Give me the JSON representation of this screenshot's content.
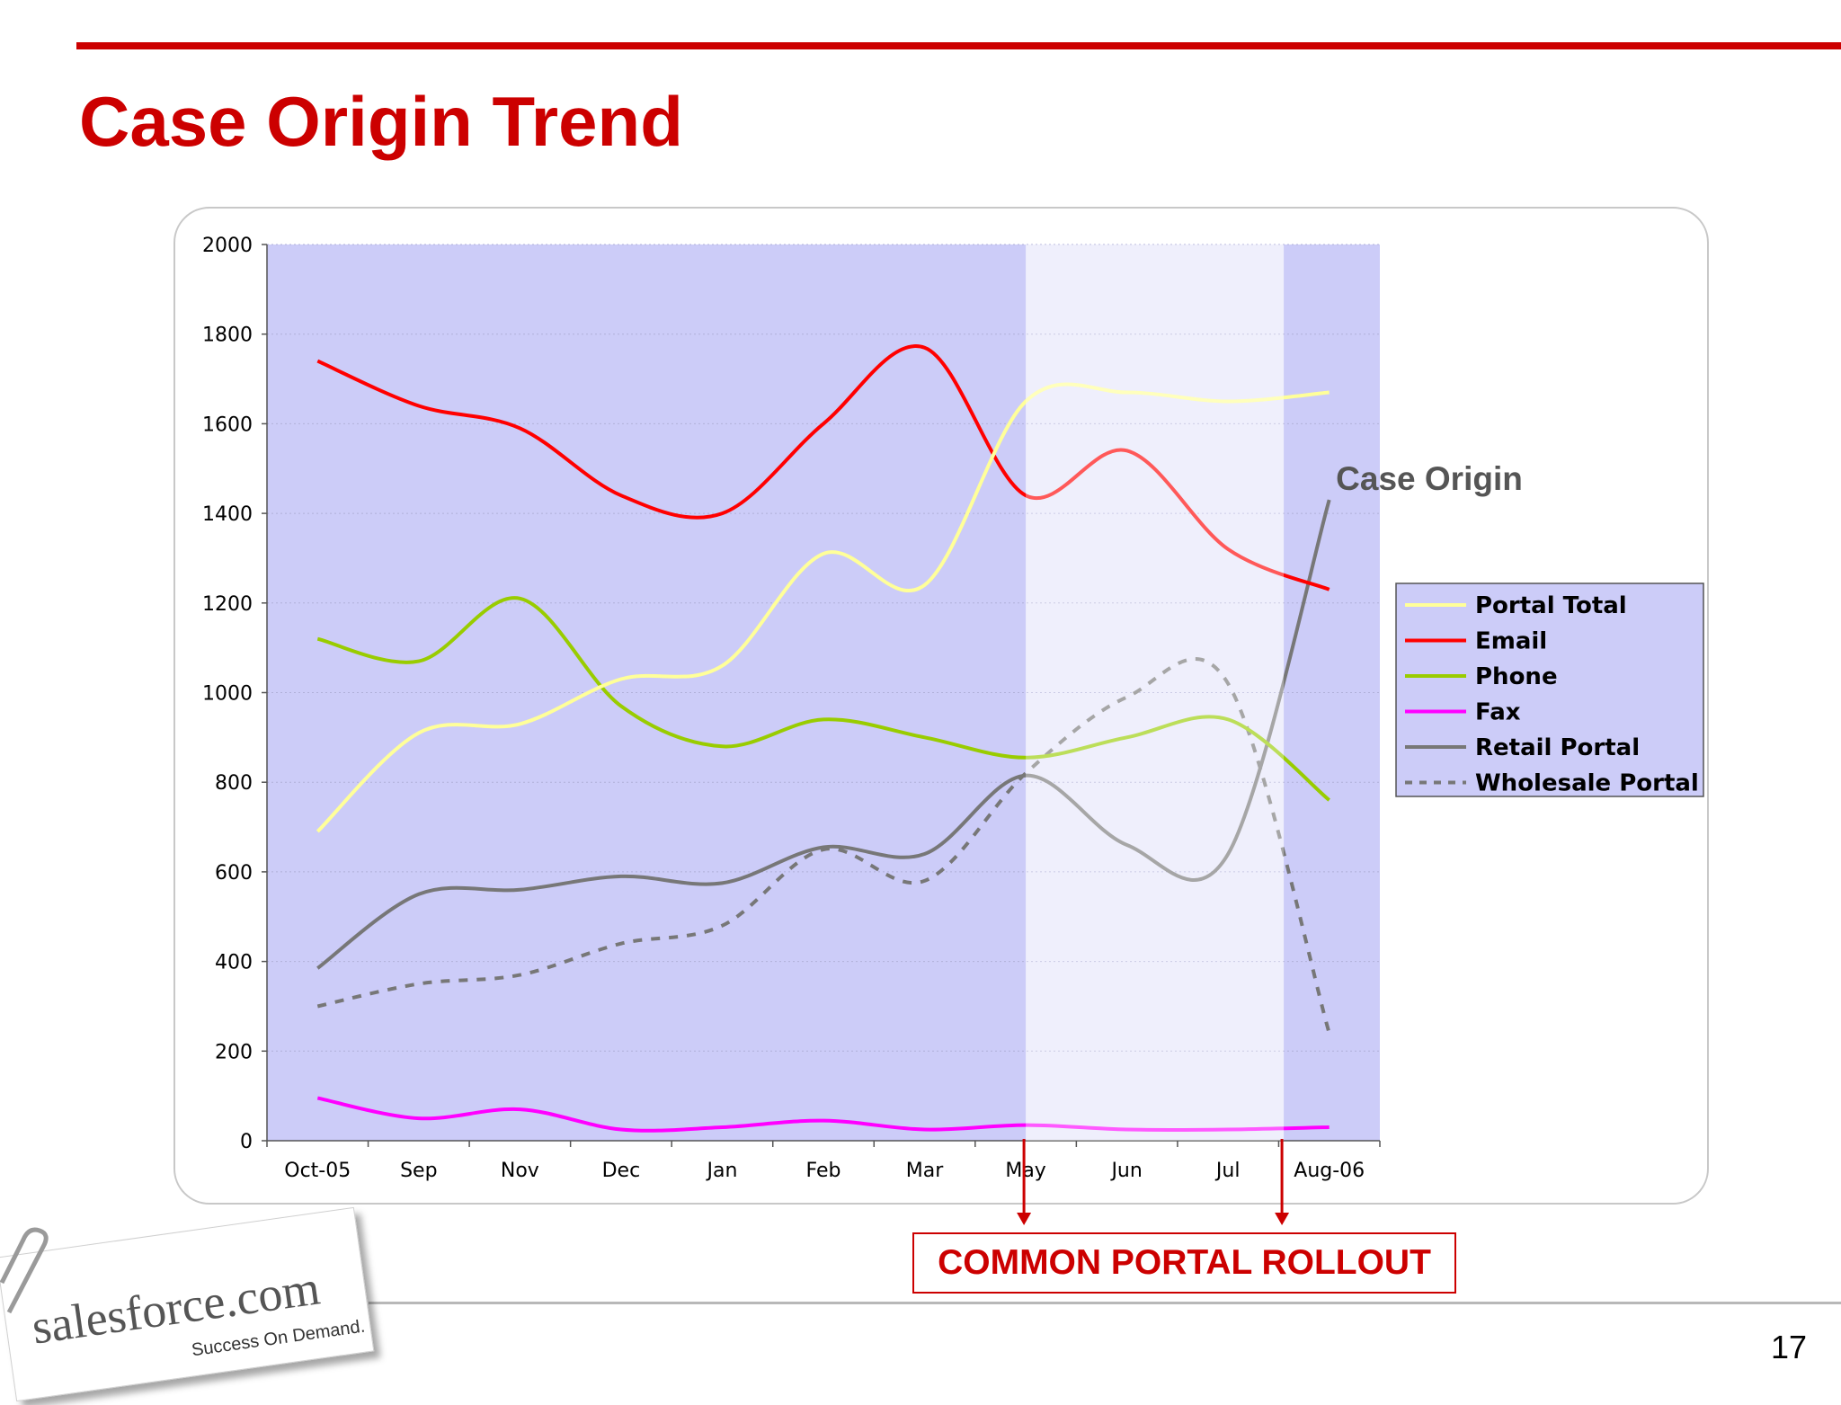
{
  "slide": {
    "title": "Case Origin Trend",
    "page_number": "17",
    "callout": "COMMON PORTAL ROLLOUT",
    "logo": {
      "wordmark": "salesforce.com",
      "tagline": "Success On Demand."
    }
  },
  "colors": {
    "accent": "#cc0000",
    "plot_bg": "#ccccf8",
    "highlight_band": "#e6e6fa",
    "Portal Total": "#ffff99",
    "Email": "#ff0000",
    "Phone": "#99cc00",
    "Fax": "#ff00ff",
    "Retail Portal": "#777777",
    "Wholesale Portal": "#777777"
  },
  "chart_data": {
    "type": "line",
    "categories": [
      "Oct-05",
      "Sep",
      "Nov",
      "Dec",
      "Jan",
      "Feb",
      "Mar",
      "May",
      "Jun",
      "Jul",
      "Aug-06"
    ],
    "ylim": [
      0,
      2000
    ],
    "yticks": [
      0,
      200,
      400,
      600,
      800,
      1000,
      1200,
      1400,
      1600,
      1800,
      2000
    ],
    "grid": true,
    "legend": {
      "title": "Case Origin",
      "position": "right"
    },
    "highlight_range": [
      "May",
      "Aug-06"
    ],
    "series": [
      {
        "name": "Portal Total",
        "style": "solid",
        "values": [
          690,
          910,
          930,
          1030,
          1060,
          1310,
          1240,
          1650,
          1670,
          1650,
          1670
        ]
      },
      {
        "name": "Email",
        "style": "solid",
        "values": [
          1740,
          1640,
          1590,
          1440,
          1400,
          1600,
          1770,
          1440,
          1540,
          1320,
          1230
        ]
      },
      {
        "name": "Phone",
        "style": "solid",
        "values": [
          1120,
          1070,
          1210,
          970,
          880,
          940,
          900,
          855,
          900,
          940,
          760
        ]
      },
      {
        "name": "Fax",
        "style": "solid",
        "values": [
          95,
          50,
          70,
          25,
          30,
          45,
          25,
          35,
          25,
          25,
          30
        ]
      },
      {
        "name": "Retail Portal",
        "style": "solid",
        "values": [
          385,
          550,
          560,
          590,
          575,
          655,
          640,
          815,
          660,
          640,
          1430
        ]
      },
      {
        "name": "Wholesale Portal",
        "style": "dashed",
        "values": [
          300,
          350,
          370,
          440,
          480,
          650,
          580,
          820,
          990,
          1020,
          240
        ]
      }
    ]
  }
}
